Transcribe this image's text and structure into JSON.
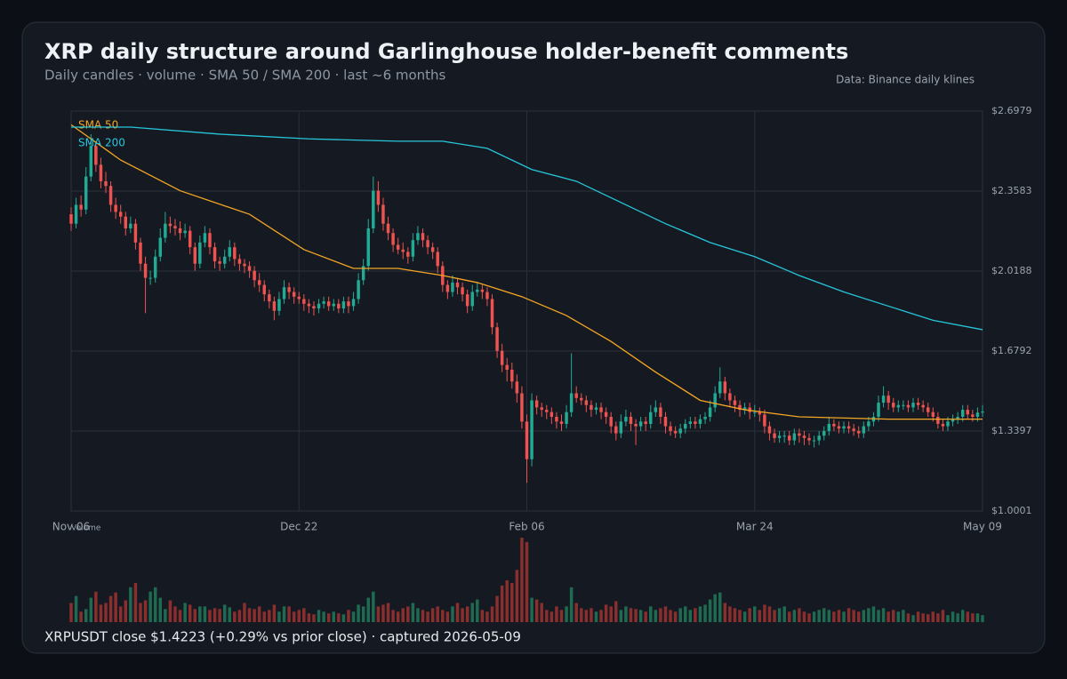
{
  "chart_data": {
    "type": "candlestick",
    "title": "XRP daily structure around Garlinghouse holder-benefit comments",
    "subtitle": "Daily candles · volume · SMA 50 / SMA 200 · last ~6 months",
    "source": "Data: Binance daily klines",
    "footer": "XRPUSDT close $1.4223  (+0.29% vs prior close) · captured 2026-05-09",
    "volume_label": "Volume",
    "up_color": "#22ab94",
    "down_color": "#ef5350",
    "volume_up_color": "#1f6b52",
    "volume_down_color": "#8a2e2e",
    "xlim": [
      0,
      184
    ],
    "xticks": [
      {
        "value": 0,
        "label": "Nov 06"
      },
      {
        "value": 46,
        "label": "Dec 22"
      },
      {
        "value": 92,
        "label": "Feb 06"
      },
      {
        "value": 138,
        "label": "Mar 24"
      },
      {
        "value": 184,
        "label": "May 09"
      }
    ],
    "ylim": [
      1.0001,
      2.6979
    ],
    "yticks": [
      {
        "value": 1.0001,
        "label": "$1.0001"
      },
      {
        "value": 1.3397,
        "label": "$1.3397"
      },
      {
        "value": 1.6792,
        "label": "$1.6792"
      },
      {
        "value": 2.0188,
        "label": "$2.0188"
      },
      {
        "value": 2.3583,
        "label": "$2.3583"
      },
      {
        "value": 2.6979,
        "label": "$2.6979"
      }
    ],
    "grid": true,
    "ohlc": [
      [
        2.26,
        2.29,
        2.19,
        2.22
      ],
      [
        2.22,
        2.33,
        2.2,
        2.3
      ],
      [
        2.3,
        2.34,
        2.25,
        2.28
      ],
      [
        2.28,
        2.46,
        2.26,
        2.42
      ],
      [
        2.42,
        2.6,
        2.4,
        2.55
      ],
      [
        2.55,
        2.57,
        2.44,
        2.47
      ],
      [
        2.47,
        2.5,
        2.37,
        2.4
      ],
      [
        2.4,
        2.44,
        2.35,
        2.38
      ],
      [
        2.38,
        2.4,
        2.27,
        2.3
      ],
      [
        2.3,
        2.33,
        2.24,
        2.27
      ],
      [
        2.27,
        2.3,
        2.22,
        2.25
      ],
      [
        2.25,
        2.27,
        2.17,
        2.2
      ],
      [
        2.2,
        2.25,
        2.18,
        2.22
      ],
      [
        2.22,
        2.24,
        2.11,
        2.14
      ],
      [
        2.14,
        2.16,
        2.02,
        2.05
      ],
      [
        2.05,
        2.08,
        1.84,
        1.99
      ],
      [
        1.99,
        2.02,
        1.96,
        1.99
      ],
      [
        1.99,
        2.11,
        1.97,
        2.08
      ],
      [
        2.08,
        2.2,
        2.06,
        2.16
      ],
      [
        2.16,
        2.27,
        2.14,
        2.22
      ],
      [
        2.22,
        2.25,
        2.18,
        2.21
      ],
      [
        2.21,
        2.24,
        2.17,
        2.2
      ],
      [
        2.2,
        2.23,
        2.15,
        2.18
      ],
      [
        2.18,
        2.22,
        2.16,
        2.19
      ],
      [
        2.19,
        2.21,
        2.09,
        2.12
      ],
      [
        2.12,
        2.14,
        2.02,
        2.05
      ],
      [
        2.05,
        2.17,
        2.03,
        2.14
      ],
      [
        2.14,
        2.21,
        2.12,
        2.18
      ],
      [
        2.18,
        2.2,
        2.09,
        2.12
      ],
      [
        2.12,
        2.14,
        2.03,
        2.06
      ],
      [
        2.06,
        2.08,
        2.02,
        2.05
      ],
      [
        2.05,
        2.11,
        2.03,
        2.08
      ],
      [
        2.08,
        2.15,
        2.06,
        2.12
      ],
      [
        2.12,
        2.14,
        2.04,
        2.07
      ],
      [
        2.07,
        2.09,
        2.02,
        2.05
      ],
      [
        2.05,
        2.07,
        2.01,
        2.04
      ],
      [
        2.04,
        2.06,
        1.99,
        2.02
      ],
      [
        2.02,
        2.04,
        1.95,
        1.98
      ],
      [
        1.98,
        2.01,
        1.93,
        1.96
      ],
      [
        1.96,
        1.98,
        1.89,
        1.92
      ],
      [
        1.92,
        1.94,
        1.86,
        1.89
      ],
      [
        1.89,
        1.91,
        1.81,
        1.85
      ],
      [
        1.85,
        1.93,
        1.83,
        1.9
      ],
      [
        1.9,
        1.98,
        1.88,
        1.95
      ],
      [
        1.95,
        1.97,
        1.9,
        1.93
      ],
      [
        1.93,
        1.95,
        1.88,
        1.91
      ],
      [
        1.91,
        1.93,
        1.88,
        1.9
      ],
      [
        1.9,
        1.92,
        1.85,
        1.88
      ],
      [
        1.88,
        1.9,
        1.84,
        1.87
      ],
      [
        1.87,
        1.89,
        1.83,
        1.86
      ],
      [
        1.86,
        1.9,
        1.84,
        1.88
      ],
      [
        1.88,
        1.91,
        1.86,
        1.89
      ],
      [
        1.89,
        1.91,
        1.85,
        1.87
      ],
      [
        1.87,
        1.9,
        1.85,
        1.88
      ],
      [
        1.88,
        1.9,
        1.84,
        1.86
      ],
      [
        1.86,
        1.91,
        1.84,
        1.89
      ],
      [
        1.89,
        1.91,
        1.84,
        1.87
      ],
      [
        1.87,
        1.93,
        1.85,
        1.9
      ],
      [
        1.9,
        2.01,
        1.88,
        1.98
      ],
      [
        1.98,
        2.07,
        1.96,
        2.04
      ],
      [
        2.04,
        2.24,
        2.02,
        2.2
      ],
      [
        2.2,
        2.42,
        2.18,
        2.36
      ],
      [
        2.36,
        2.4,
        2.27,
        2.3
      ],
      [
        2.3,
        2.33,
        2.19,
        2.22
      ],
      [
        2.22,
        2.25,
        2.15,
        2.18
      ],
      [
        2.18,
        2.2,
        2.1,
        2.13
      ],
      [
        2.13,
        2.16,
        2.09,
        2.11
      ],
      [
        2.11,
        2.14,
        2.07,
        2.1
      ],
      [
        2.1,
        2.12,
        2.05,
        2.08
      ],
      [
        2.08,
        2.18,
        2.06,
        2.15
      ],
      [
        2.15,
        2.21,
        2.13,
        2.18
      ],
      [
        2.18,
        2.2,
        2.12,
        2.15
      ],
      [
        2.15,
        2.17,
        2.09,
        2.12
      ],
      [
        2.12,
        2.14,
        2.07,
        2.1
      ],
      [
        2.1,
        2.12,
        2.01,
        2.04
      ],
      [
        2.04,
        2.06,
        1.93,
        1.96
      ],
      [
        1.96,
        1.98,
        1.9,
        1.93
      ],
      [
        1.93,
        2.0,
        1.91,
        1.97
      ],
      [
        1.97,
        1.99,
        1.92,
        1.95
      ],
      [
        1.95,
        1.97,
        1.89,
        1.92
      ],
      [
        1.92,
        1.94,
        1.84,
        1.87
      ],
      [
        1.87,
        1.96,
        1.85,
        1.93
      ],
      [
        1.93,
        1.97,
        1.91,
        1.94
      ],
      [
        1.94,
        1.96,
        1.9,
        1.93
      ],
      [
        1.93,
        1.95,
        1.87,
        1.9
      ],
      [
        1.9,
        1.92,
        1.75,
        1.78
      ],
      [
        1.78,
        1.8,
        1.65,
        1.68
      ],
      [
        1.68,
        1.71,
        1.59,
        1.62
      ],
      [
        1.62,
        1.65,
        1.55,
        1.6
      ],
      [
        1.6,
        1.63,
        1.52,
        1.55
      ],
      [
        1.55,
        1.58,
        1.46,
        1.5
      ],
      [
        1.5,
        1.53,
        1.35,
        1.38
      ],
      [
        1.38,
        1.41,
        1.12,
        1.22
      ],
      [
        1.22,
        1.5,
        1.19,
        1.47
      ],
      [
        1.47,
        1.49,
        1.41,
        1.44
      ],
      [
        1.44,
        1.46,
        1.4,
        1.43
      ],
      [
        1.43,
        1.45,
        1.39,
        1.42
      ],
      [
        1.42,
        1.44,
        1.37,
        1.4
      ],
      [
        1.4,
        1.42,
        1.35,
        1.38
      ],
      [
        1.38,
        1.41,
        1.34,
        1.37
      ],
      [
        1.37,
        1.45,
        1.35,
        1.42
      ],
      [
        1.42,
        1.67,
        1.4,
        1.5
      ],
      [
        1.5,
        1.53,
        1.46,
        1.48
      ],
      [
        1.48,
        1.5,
        1.45,
        1.47
      ],
      [
        1.47,
        1.49,
        1.42,
        1.45
      ],
      [
        1.45,
        1.47,
        1.4,
        1.43
      ],
      [
        1.43,
        1.46,
        1.41,
        1.44
      ],
      [
        1.44,
        1.46,
        1.39,
        1.42
      ],
      [
        1.42,
        1.44,
        1.37,
        1.4
      ],
      [
        1.4,
        1.42,
        1.33,
        1.36
      ],
      [
        1.36,
        1.38,
        1.3,
        1.33
      ],
      [
        1.33,
        1.41,
        1.31,
        1.38
      ],
      [
        1.38,
        1.43,
        1.36,
        1.4
      ],
      [
        1.4,
        1.42,
        1.34,
        1.37
      ],
      [
        1.37,
        1.39,
        1.28,
        1.36
      ],
      [
        1.36,
        1.4,
        1.34,
        1.38
      ],
      [
        1.38,
        1.4,
        1.34,
        1.37
      ],
      [
        1.37,
        1.45,
        1.35,
        1.42
      ],
      [
        1.42,
        1.47,
        1.4,
        1.44
      ],
      [
        1.44,
        1.46,
        1.37,
        1.4
      ],
      [
        1.4,
        1.42,
        1.33,
        1.36
      ],
      [
        1.36,
        1.38,
        1.32,
        1.34
      ],
      [
        1.34,
        1.36,
        1.31,
        1.33
      ],
      [
        1.33,
        1.37,
        1.31,
        1.35
      ],
      [
        1.35,
        1.39,
        1.33,
        1.37
      ],
      [
        1.37,
        1.4,
        1.35,
        1.38
      ],
      [
        1.38,
        1.4,
        1.35,
        1.37
      ],
      [
        1.37,
        1.41,
        1.35,
        1.39
      ],
      [
        1.39,
        1.42,
        1.37,
        1.4
      ],
      [
        1.4,
        1.47,
        1.38,
        1.44
      ],
      [
        1.44,
        1.53,
        1.42,
        1.5
      ],
      [
        1.5,
        1.61,
        1.48,
        1.55
      ],
      [
        1.55,
        1.57,
        1.47,
        1.5
      ],
      [
        1.5,
        1.52,
        1.44,
        1.47
      ],
      [
        1.47,
        1.49,
        1.42,
        1.45
      ],
      [
        1.45,
        1.47,
        1.4,
        1.43
      ],
      [
        1.43,
        1.46,
        1.41,
        1.44
      ],
      [
        1.44,
        1.46,
        1.39,
        1.42
      ],
      [
        1.42,
        1.45,
        1.4,
        1.42
      ],
      [
        1.42,
        1.44,
        1.38,
        1.41
      ],
      [
        1.41,
        1.43,
        1.33,
        1.36
      ],
      [
        1.36,
        1.38,
        1.3,
        1.33
      ],
      [
        1.33,
        1.35,
        1.29,
        1.31
      ],
      [
        1.31,
        1.34,
        1.29,
        1.32
      ],
      [
        1.32,
        1.34,
        1.29,
        1.32
      ],
      [
        1.32,
        1.34,
        1.28,
        1.3
      ],
      [
        1.3,
        1.35,
        1.28,
        1.33
      ],
      [
        1.33,
        1.35,
        1.29,
        1.32
      ],
      [
        1.32,
        1.34,
        1.28,
        1.31
      ],
      [
        1.31,
        1.33,
        1.28,
        1.3
      ],
      [
        1.3,
        1.32,
        1.27,
        1.3
      ],
      [
        1.3,
        1.34,
        1.28,
        1.32
      ],
      [
        1.32,
        1.36,
        1.3,
        1.34
      ],
      [
        1.34,
        1.4,
        1.32,
        1.37
      ],
      [
        1.37,
        1.39,
        1.34,
        1.36
      ],
      [
        1.36,
        1.38,
        1.33,
        1.35
      ],
      [
        1.35,
        1.38,
        1.33,
        1.36
      ],
      [
        1.36,
        1.38,
        1.33,
        1.35
      ],
      [
        1.35,
        1.37,
        1.32,
        1.34
      ],
      [
        1.34,
        1.36,
        1.31,
        1.33
      ],
      [
        1.33,
        1.38,
        1.31,
        1.36
      ],
      [
        1.36,
        1.4,
        1.34,
        1.38
      ],
      [
        1.38,
        1.42,
        1.36,
        1.4
      ],
      [
        1.4,
        1.49,
        1.38,
        1.46
      ],
      [
        1.46,
        1.53,
        1.44,
        1.49
      ],
      [
        1.49,
        1.51,
        1.43,
        1.46
      ],
      [
        1.46,
        1.48,
        1.42,
        1.44
      ],
      [
        1.44,
        1.47,
        1.42,
        1.45
      ],
      [
        1.45,
        1.47,
        1.43,
        1.45
      ],
      [
        1.45,
        1.47,
        1.42,
        1.44
      ],
      [
        1.44,
        1.48,
        1.42,
        1.46
      ],
      [
        1.46,
        1.48,
        1.43,
        1.45
      ],
      [
        1.45,
        1.47,
        1.42,
        1.44
      ],
      [
        1.44,
        1.46,
        1.4,
        1.42
      ],
      [
        1.42,
        1.44,
        1.38,
        1.4
      ],
      [
        1.4,
        1.42,
        1.35,
        1.37
      ],
      [
        1.37,
        1.39,
        1.34,
        1.36
      ],
      [
        1.36,
        1.4,
        1.34,
        1.38
      ],
      [
        1.38,
        1.41,
        1.36,
        1.39
      ],
      [
        1.39,
        1.42,
        1.37,
        1.4
      ],
      [
        1.4,
        1.45,
        1.38,
        1.43
      ],
      [
        1.43,
        1.45,
        1.39,
        1.41
      ],
      [
        1.41,
        1.43,
        1.38,
        1.4
      ],
      [
        1.4,
        1.44,
        1.38,
        1.418
      ],
      [
        1.418,
        1.45,
        1.4,
        1.4223
      ]
    ],
    "volume": [
      22,
      30,
      12,
      15,
      28,
      35,
      20,
      22,
      30,
      34,
      18,
      25,
      40,
      45,
      22,
      25,
      35,
      40,
      28,
      15,
      25,
      18,
      14,
      22,
      20,
      15,
      18,
      18,
      14,
      16,
      15,
      20,
      17,
      12,
      14,
      22,
      16,
      15,
      18,
      12,
      14,
      20,
      12,
      18,
      18,
      12,
      14,
      16,
      10,
      9,
      14,
      12,
      10,
      12,
      10,
      9,
      14,
      12,
      20,
      18,
      28,
      35,
      18,
      20,
      22,
      14,
      12,
      16,
      18,
      22,
      16,
      14,
      12,
      16,
      18,
      14,
      12,
      18,
      22,
      16,
      18,
      22,
      26,
      14,
      12,
      18,
      30,
      42,
      48,
      45,
      60,
      97,
      92,
      28,
      26,
      22,
      14,
      12,
      18,
      14,
      18,
      40,
      22,
      16,
      14,
      16,
      12,
      14,
      20,
      18,
      24,
      14,
      18,
      16,
      15,
      14,
      12,
      18,
      14,
      16,
      18,
      14,
      12,
      16,
      18,
      14,
      16,
      18,
      20,
      26,
      32,
      34,
      22,
      18,
      16,
      14,
      12,
      16,
      18,
      14,
      20,
      18,
      14,
      16,
      18,
      12,
      14,
      16,
      12,
      10,
      12,
      14,
      16,
      14,
      12,
      14,
      12,
      16,
      14,
      12,
      14,
      16,
      18,
      14,
      16,
      12,
      14,
      12,
      14,
      10,
      8,
      12,
      10,
      9,
      12,
      10,
      14,
      8,
      12,
      10,
      14,
      12,
      10,
      10,
      8
    ],
    "series": [
      {
        "name": "SMA 50",
        "color": "#f5a623",
        "x": [
          0,
          10,
          22,
          36,
          47,
          57,
          66,
          75,
          82,
          91,
          100,
          109,
          118,
          127,
          136,
          147,
          165,
          184
        ],
        "values": [
          2.64,
          2.49,
          2.36,
          2.26,
          2.11,
          2.03,
          2.03,
          2.0,
          1.97,
          1.91,
          1.83,
          1.72,
          1.59,
          1.47,
          1.43,
          1.4,
          1.39,
          1.39
        ]
      },
      {
        "name": "SMA 200",
        "color": "#26c6da",
        "x": [
          0,
          12,
          30,
          48,
          66,
          75,
          84,
          93,
          102,
          111,
          120,
          129,
          138,
          147,
          156,
          165,
          174,
          184
        ],
        "values": [
          2.63,
          2.63,
          2.6,
          2.58,
          2.57,
          2.57,
          2.54,
          2.45,
          2.4,
          2.31,
          2.22,
          2.14,
          2.08,
          2.0,
          1.93,
          1.87,
          1.81,
          1.77
        ]
      }
    ]
  }
}
